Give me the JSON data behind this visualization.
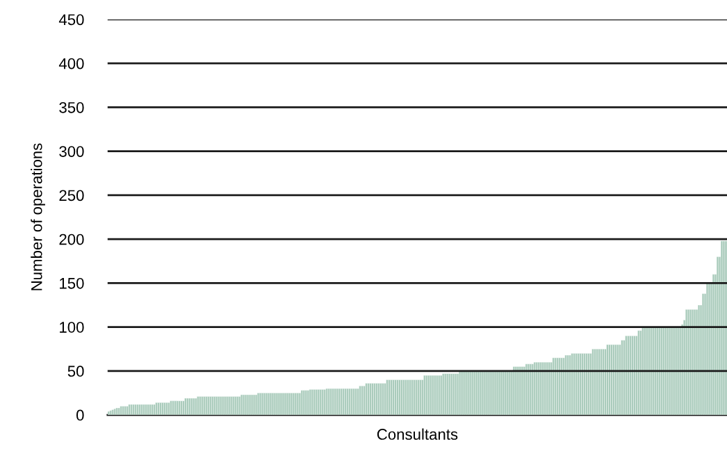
{
  "chart_data": {
    "type": "bar",
    "xlabel": "Consultants",
    "ylabel": "Number of operations",
    "categories": [
      null,
      null,
      null,
      null,
      null,
      null,
      null,
      null,
      null,
      null,
      null,
      null,
      null,
      null,
      null,
      null,
      null,
      null,
      null,
      null,
      null,
      null,
      null,
      null,
      null,
      null,
      null,
      null,
      null,
      null,
      null,
      null,
      null,
      null,
      null,
      null,
      null,
      null,
      null,
      null,
      null,
      null,
      null,
      null,
      null,
      null,
      null,
      null,
      null,
      null,
      null,
      null,
      null,
      null,
      null,
      null,
      null,
      null,
      null,
      null,
      null,
      null,
      null,
      null,
      null,
      null,
      null,
      null,
      null,
      null,
      null,
      null,
      null,
      null,
      null,
      null,
      null,
      null,
      null,
      null,
      null,
      null,
      null,
      null,
      null,
      null,
      null,
      null,
      null,
      null,
      null,
      null,
      null,
      null,
      null,
      null,
      null,
      null,
      null,
      null,
      null,
      null,
      null,
      null,
      null,
      null,
      null,
      null,
      null,
      null,
      null,
      null,
      null,
      null,
      null,
      null,
      null,
      null,
      null,
      null,
      null,
      null,
      null,
      null,
      null,
      null,
      null,
      null,
      null,
      null,
      null,
      null,
      null,
      null,
      null,
      null,
      null,
      null,
      null,
      null,
      null,
      null,
      null,
      null,
      null,
      null,
      null,
      null,
      null,
      null,
      null,
      null,
      null,
      null,
      null,
      null,
      null,
      null,
      null,
      null,
      null,
      null,
      null,
      null,
      null,
      null,
      null,
      null,
      null,
      null,
      null,
      null,
      null,
      null,
      null,
      null,
      null,
      null,
      null,
      null,
      null,
      null,
      null,
      null,
      null,
      null,
      null,
      null,
      null,
      null,
      null,
      null,
      null,
      null,
      null,
      null,
      null,
      null,
      null,
      null,
      null,
      null,
      null,
      null,
      null,
      null,
      null,
      null,
      null,
      null,
      null,
      null,
      null,
      null,
      null,
      null,
      null,
      null,
      null,
      null,
      null,
      null,
      null,
      null,
      null,
      null,
      null,
      null,
      null,
      null,
      null,
      null,
      null,
      null,
      null,
      null,
      null,
      null,
      null,
      null,
      null,
      null,
      null,
      null,
      null,
      null,
      null,
      null,
      null,
      null,
      null,
      null,
      null,
      null,
      null,
      null,
      null,
      null,
      null,
      null,
      null,
      null,
      null,
      null,
      null,
      null,
      null,
      null,
      null,
      null,
      null,
      null,
      null,
      null,
      null,
      null,
      null,
      null,
      null,
      null,
      null,
      null,
      null,
      null,
      null,
      null,
      null,
      null,
      null,
      null,
      null,
      null,
      null,
      null,
      null,
      null,
      null,
      null
    ],
    "values": [
      4,
      5,
      6,
      7,
      8,
      8,
      10,
      10,
      10,
      10,
      12,
      12,
      12,
      12,
      12,
      12,
      12,
      12,
      12,
      12,
      12,
      12,
      12,
      14,
      14,
      14,
      14,
      14,
      14,
      14,
      16,
      16,
      16,
      16,
      16,
      16,
      16,
      19,
      19,
      19,
      19,
      19,
      19,
      21,
      21,
      21,
      21,
      21,
      21,
      21,
      21,
      21,
      21,
      21,
      21,
      21,
      21,
      21,
      21,
      21,
      21,
      21,
      21,
      21,
      23,
      23,
      23,
      23,
      23,
      23,
      23,
      23,
      25,
      25,
      25,
      25,
      25,
      25,
      25,
      25,
      25,
      25,
      25,
      25,
      25,
      25,
      25,
      25,
      25,
      25,
      25,
      25,
      25,
      28,
      28,
      28,
      28,
      29,
      29,
      29,
      29,
      29,
      29,
      29,
      29,
      30,
      30,
      30,
      30,
      30,
      30,
      30,
      30,
      30,
      30,
      30,
      30,
      30,
      30,
      30,
      30,
      33,
      33,
      33,
      36,
      36,
      36,
      36,
      36,
      36,
      36,
      36,
      36,
      36,
      40,
      40,
      40,
      40,
      40,
      40,
      40,
      40,
      40,
      40,
      40,
      40,
      40,
      40,
      40,
      40,
      40,
      40,
      45,
      45,
      45,
      45,
      45,
      45,
      45,
      45,
      45,
      47,
      47,
      47,
      47,
      47,
      47,
      47,
      47,
      50,
      50,
      50,
      50,
      50,
      50,
      50,
      50,
      50,
      50,
      50,
      50,
      50,
      50,
      50,
      50,
      50,
      50,
      50,
      50,
      50,
      50,
      50,
      50,
      50,
      50,
      55,
      55,
      55,
      55,
      55,
      55,
      58,
      58,
      58,
      58,
      60,
      60,
      60,
      60,
      60,
      60,
      60,
      60,
      60,
      65,
      65,
      65,
      65,
      65,
      65,
      68,
      68,
      68,
      70,
      70,
      70,
      70,
      70,
      70,
      70,
      70,
      70,
      70,
      75,
      75,
      75,
      75,
      75,
      75,
      75,
      80,
      80,
      80,
      80,
      80,
      80,
      80,
      85,
      85,
      90,
      90,
      90,
      90,
      90,
      90,
      96,
      96,
      100,
      100,
      100,
      100,
      100,
      100,
      100,
      100,
      100,
      100,
      100,
      100,
      100,
      100,
      100,
      100,
      100,
      100,
      100,
      103,
      108,
      120,
      120,
      120,
      120,
      120,
      120,
      125,
      125,
      138,
      138,
      150,
      150,
      150,
      160,
      160,
      180,
      180,
      198,
      198,
      198
    ],
    "color": "#a9cbbb",
    "ylim": [
      0,
      450
    ],
    "yticks": [
      0,
      50,
      100,
      150,
      200,
      250,
      300,
      350,
      400,
      450
    ],
    "grid": "y",
    "tick_labels": "y",
    "legend": false
  }
}
